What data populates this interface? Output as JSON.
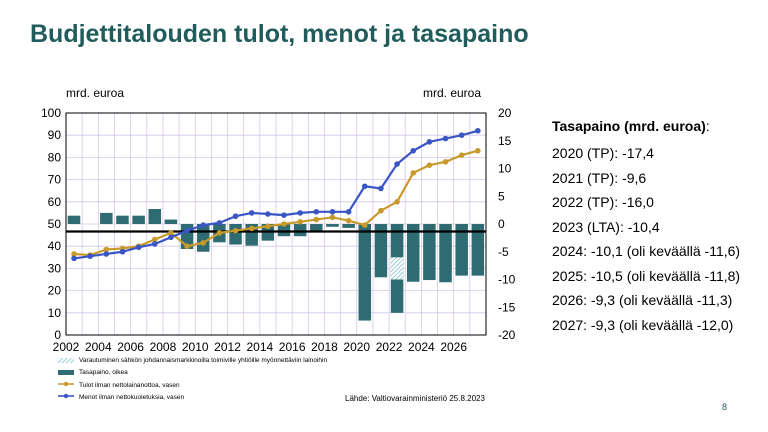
{
  "slide_title": "Budjettitalouden tulot, menot ja tasapaino",
  "page_number": "8",
  "colors": {
    "title": "#215c5c",
    "bars": "#2e6b72",
    "tulot": "#c89a2c",
    "menot": "#3a55c4",
    "hatch": "#7fbfcc"
  },
  "chart_data": {
    "type": "bar+line",
    "unit_left": "mrd. euroa",
    "unit_right": "mrd. euroa",
    "x": [
      2002,
      2003,
      2004,
      2005,
      2006,
      2007,
      2008,
      2009,
      2010,
      2011,
      2012,
      2013,
      2014,
      2015,
      2016,
      2017,
      2018,
      2019,
      2020,
      2021,
      2022,
      2023,
      2024,
      2025,
      2026,
      2027
    ],
    "xticks": [
      "2002",
      "2004",
      "2006",
      "2008",
      "2010",
      "2012",
      "2014",
      "2016",
      "2018",
      "2020",
      "2022",
      "2024",
      "2026"
    ],
    "yticks_left": [
      "0",
      "10",
      "20",
      "30",
      "40",
      "50",
      "60",
      "70",
      "80",
      "90",
      "100"
    ],
    "yticks_right": [
      "-20",
      "-15",
      "-10",
      "-5",
      "0",
      "5",
      "10",
      "15",
      "20"
    ],
    "ylim_left": [
      0,
      100
    ],
    "ylim_right": [
      -20,
      20
    ],
    "series": [
      {
        "name": "Tasapaino, oikea",
        "type": "bar",
        "axis": "right",
        "values": [
          1.5,
          0,
          2,
          1.5,
          1.5,
          2.7,
          0.8,
          -4.5,
          -5,
          -3.3,
          -3.7,
          -3.9,
          -3,
          -2.2,
          -2.2,
          -1.4,
          -0.5,
          -0.7,
          -17.4,
          -9.6,
          -16.0,
          -10.4,
          -10.1,
          -10.5,
          -9.3,
          -9.3
        ]
      },
      {
        "name": "Varautuminen sähkön johdannaismarkkinoilla toimiville yhtiöille myönnettäviin lainoihin",
        "type": "hatched-bar",
        "axis": "right",
        "values": [
          null,
          null,
          null,
          null,
          null,
          null,
          null,
          null,
          null,
          null,
          null,
          null,
          null,
          null,
          null,
          null,
          null,
          null,
          null,
          null,
          -10,
          null,
          null,
          null,
          null,
          null
        ]
      },
      {
        "name": "Tulot ilman nettolainanottoa, vasen",
        "type": "line",
        "axis": "left",
        "values": [
          36.5,
          36,
          38.5,
          39,
          40,
          43,
          46,
          40,
          41.5,
          46,
          47,
          48,
          49,
          50,
          51,
          52,
          53,
          51.5,
          49.5,
          56,
          60,
          73,
          76.5,
          78,
          81,
          83
        ]
      },
      {
        "name": "Menot ilman nettokuoletuksia, vasen",
        "type": "line",
        "axis": "left",
        "values": [
          34.5,
          35.5,
          36.5,
          37.5,
          39.5,
          41,
          44,
          47,
          49.5,
          50.5,
          53.5,
          55,
          54.5,
          54,
          55,
          55.5,
          55.5,
          55.5,
          67,
          66,
          77,
          83,
          87,
          88.5,
          90,
          92
        ]
      }
    ],
    "source": "Lähde: Valtiovarainministeriö 25.8.2023"
  },
  "balance_panel": {
    "heading": "Tasapaino (mrd. euroa)",
    "heading_colon": ":",
    "lines": [
      "2020 (TP): -17,4",
      "2021 (TP): -9,6",
      "2022 (TP): -16,0",
      "2023 (LTA): -10,4",
      "2024: -10,1 (oli keväällä -11,6)",
      "2025: -10,5 (oli keväällä -11,8)",
      "2026: -9,3 (oli keväällä -11,3)",
      "2027: -9,3 (oli keväällä -12,0)"
    ]
  }
}
